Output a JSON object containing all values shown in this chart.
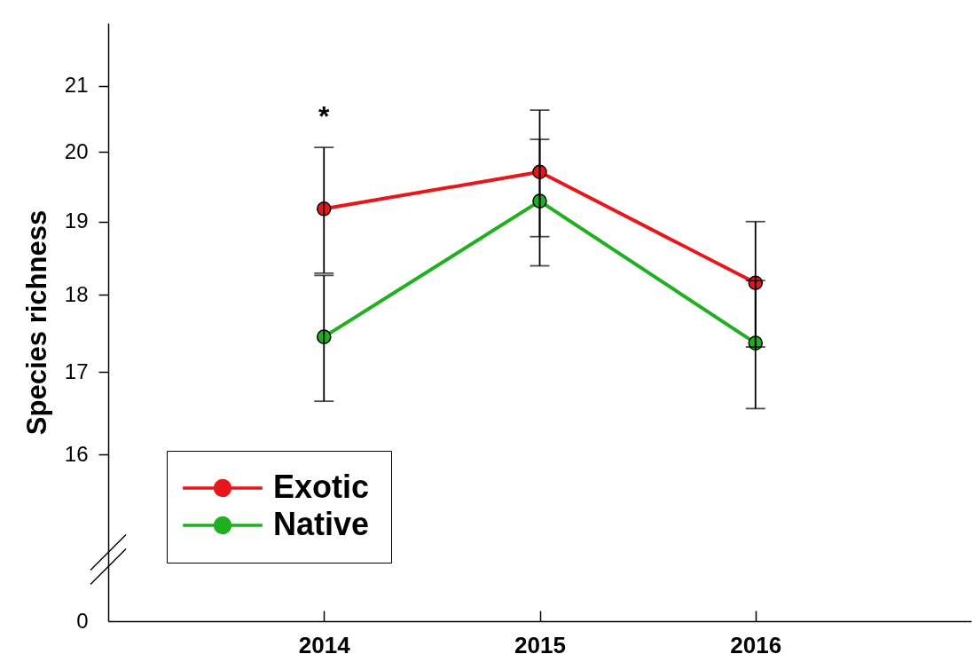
{
  "chart_data": {
    "type": "line",
    "ylabel": "Species richness",
    "categories": [
      "2014",
      "2015",
      "2016"
    ],
    "series": [
      {
        "name": "Exotic",
        "color": "#e8161b",
        "values": [
          19.18,
          19.71,
          18.16
        ],
        "errors": [
          0.89,
          0.92,
          0.84
        ]
      },
      {
        "name": "Native",
        "color": "#1fb01f",
        "values": [
          17.45,
          19.29,
          17.37
        ],
        "errors": [
          0.81,
          0.9,
          0.82
        ]
      }
    ],
    "ylim": [
      0,
      22
    ],
    "yticks": [
      0,
      16,
      17,
      18,
      19,
      20,
      21
    ],
    "log": true,
    "legend": "bottom left",
    "marker": "circle",
    "line_style": "solid",
    "annotations": [
      {
        "text": "*",
        "x": "2014",
        "y": 20.07
      }
    ]
  }
}
